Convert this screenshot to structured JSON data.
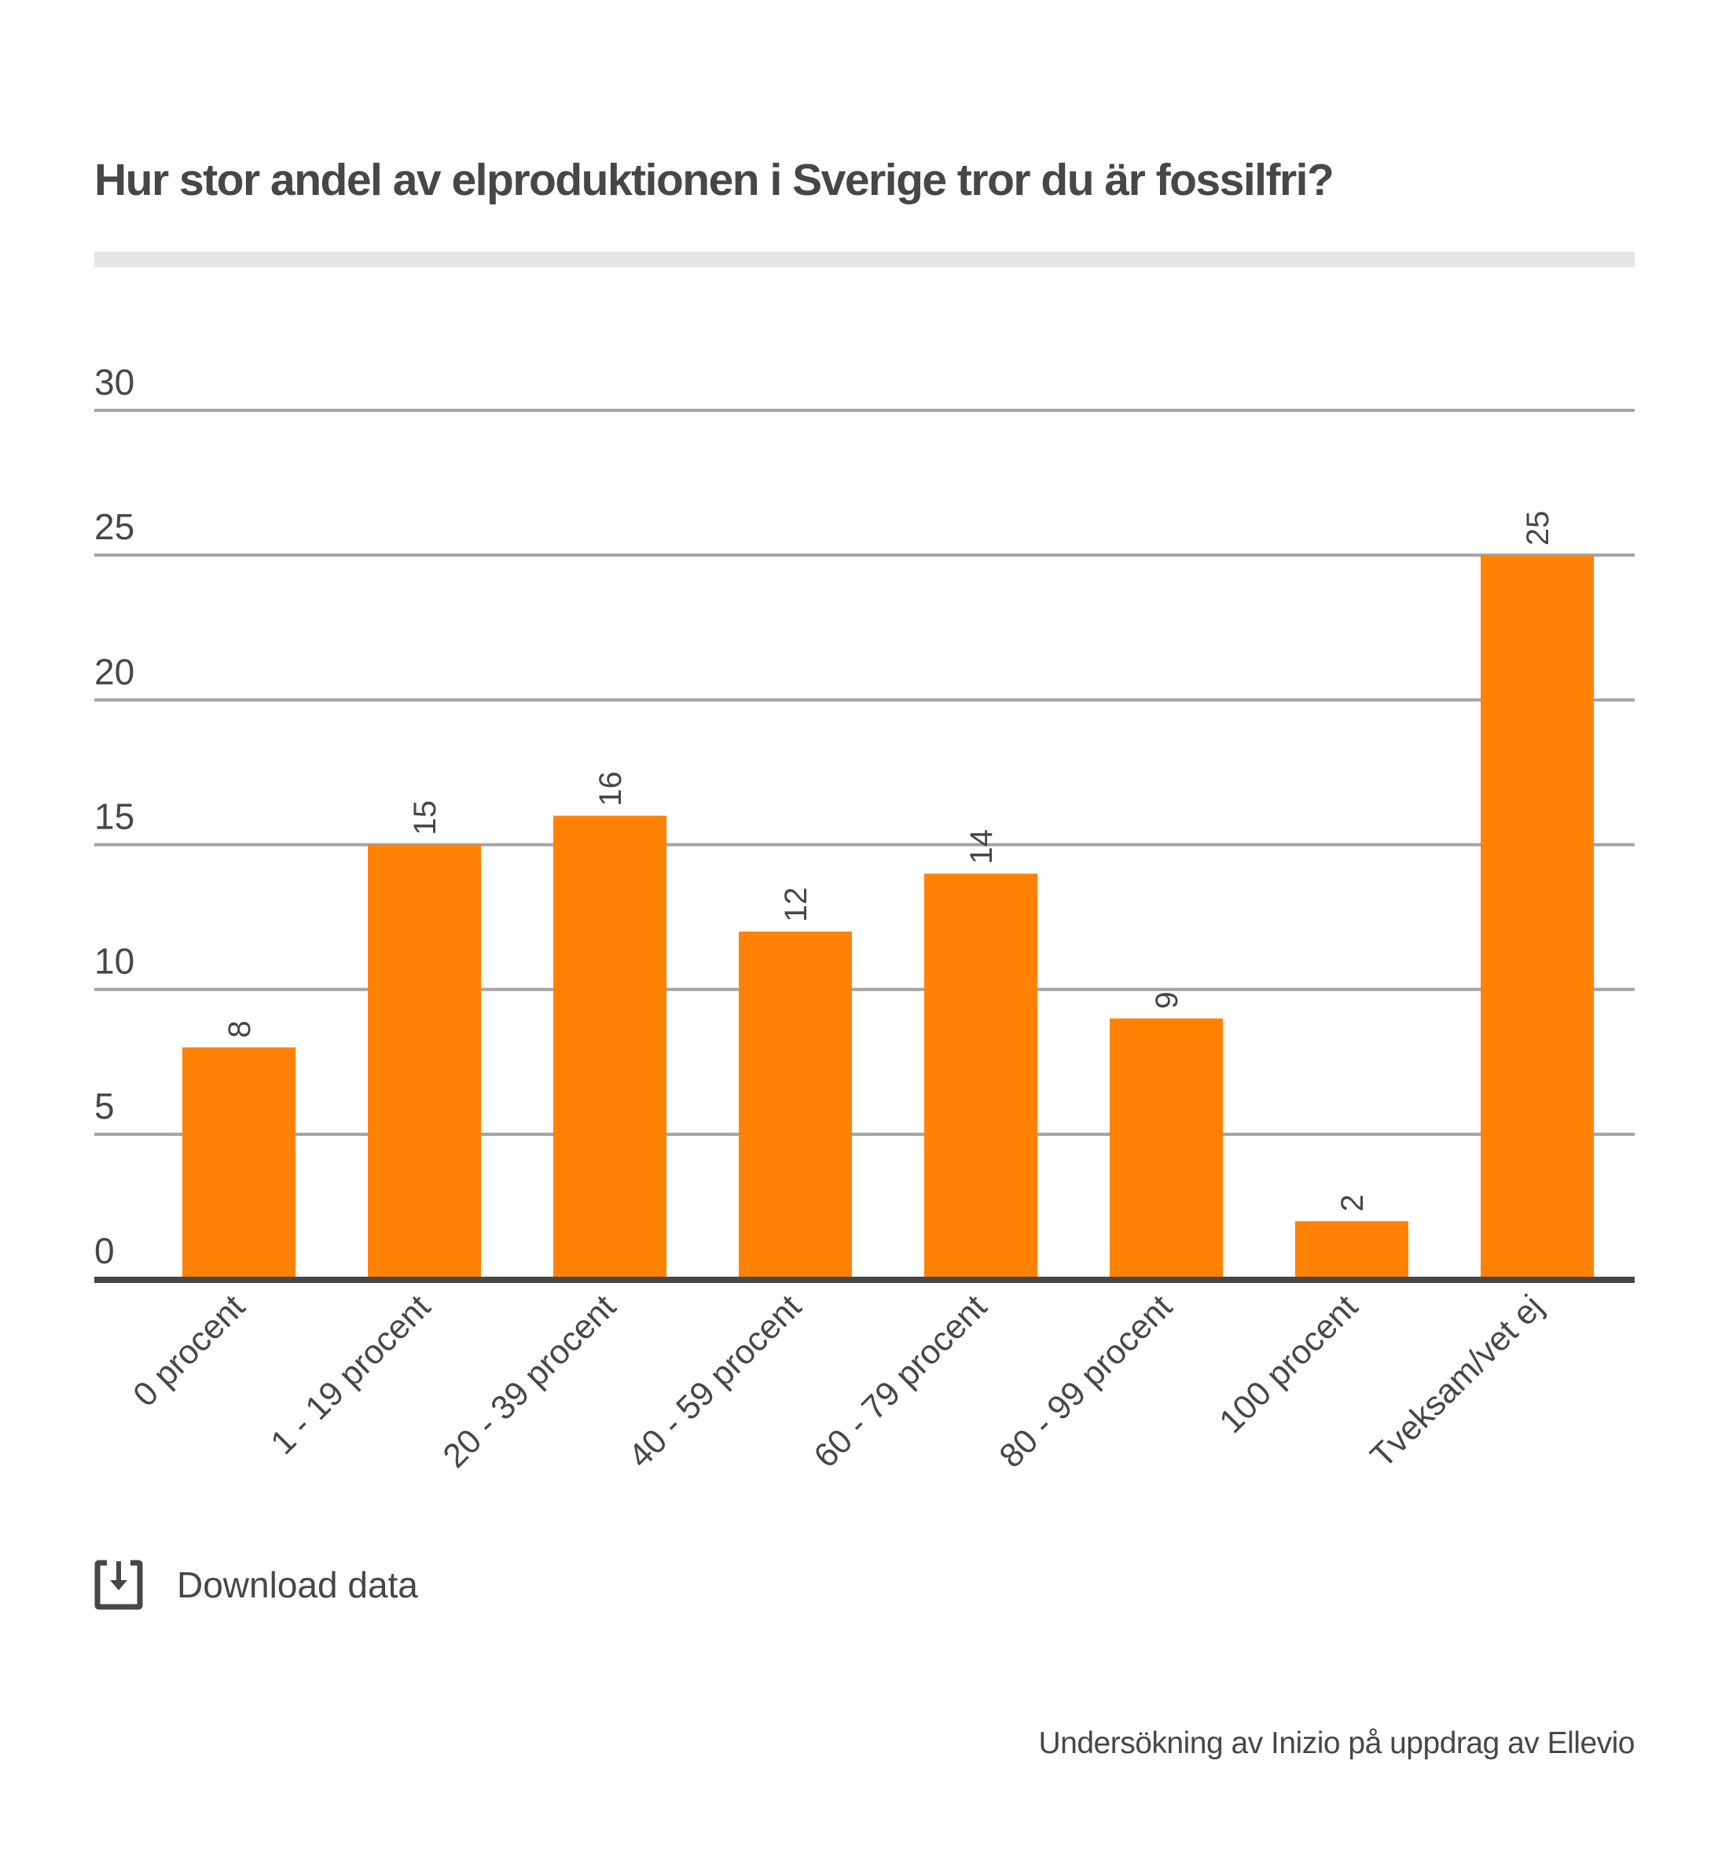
{
  "header": {
    "title": "Hur stor andel av elproduktionen i Sverige tror du är fossilfri?"
  },
  "chart_data": {
    "type": "bar",
    "title": "Hur stor andel av elproduktionen i Sverige tror du är fossilfri?",
    "xlabel": "",
    "ylabel": "",
    "categories": [
      "0 procent",
      "1 - 19 procent",
      "20 - 39 procent",
      "40 - 59 procent",
      "60 - 79 procent",
      "80 - 99 procent",
      "100 procent",
      "Tveksam/vet ej"
    ],
    "values": [
      8,
      15,
      16,
      12,
      14,
      9,
      2,
      25
    ],
    "ylim": [
      0,
      30
    ],
    "yticks": [
      0,
      5,
      10,
      15,
      20,
      25,
      30
    ],
    "grid": true,
    "data_labels": true,
    "bar_color": "#ff8204",
    "gridline_color": "#a3a3a3",
    "axis_color": "#474747",
    "x_tick_rotation": "-45deg",
    "data_label_rotation": "-90deg"
  },
  "download": {
    "label": "Download data",
    "icon": "download-icon"
  },
  "footer": {
    "source": "Undersökning av Inizio på uppdrag av Ellevio"
  }
}
